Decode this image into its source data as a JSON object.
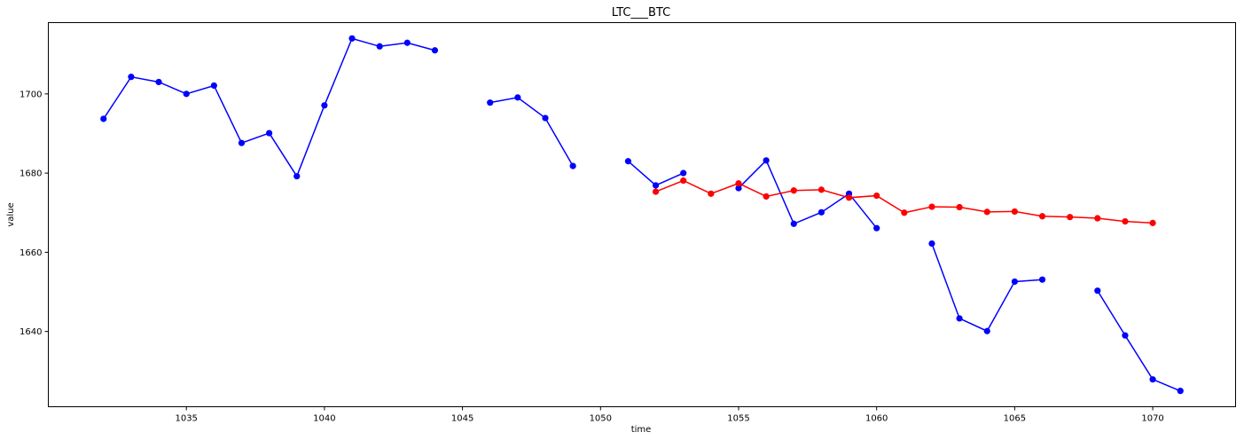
{
  "chart_data": {
    "type": "line",
    "title": "LTC___BTC",
    "xlabel": "time",
    "ylabel": "value",
    "xlim": [
      1030.0,
      1073.0
    ],
    "ylim": [
      1621.0,
      1718.0
    ],
    "xticks": [
      1035,
      1040,
      1045,
      1050,
      1055,
      1060,
      1065,
      1070
    ],
    "yticks": [
      1640,
      1660,
      1680,
      1700
    ],
    "grid": false,
    "series": [
      {
        "color": "#0000ff",
        "points": [
          [
            1032,
            1693.7
          ],
          [
            1033,
            1704.3
          ],
          [
            1034,
            1703.0
          ],
          [
            1035,
            1700.0
          ],
          [
            1036,
            1702.1
          ],
          [
            1037,
            1687.6
          ],
          [
            1038,
            1690.1
          ],
          [
            1039,
            1679.2
          ],
          [
            1040,
            1697.1
          ],
          [
            1041,
            1714.0
          ],
          [
            1042,
            1712.0
          ],
          [
            1043,
            1712.9
          ],
          [
            1044,
            1711.0
          ],
          [
            1045,
            null
          ],
          [
            1046,
            1697.8
          ],
          [
            1047,
            1699.1
          ],
          [
            1048,
            1693.9
          ],
          [
            1049,
            1681.8
          ],
          [
            1050,
            null
          ],
          [
            1051,
            1683.0
          ],
          [
            1052,
            1676.9
          ],
          [
            1053,
            1680.0
          ],
          [
            1054,
            null
          ],
          [
            1055,
            1676.2
          ],
          [
            1056,
            1683.2
          ],
          [
            1057,
            1667.2
          ],
          [
            1058,
            1670.1
          ],
          [
            1059,
            1674.8
          ],
          [
            1060,
            1666.1
          ],
          [
            1061,
            null
          ],
          [
            1062,
            1662.2
          ],
          [
            1063,
            1643.3
          ],
          [
            1064,
            1640.1
          ],
          [
            1065,
            1652.6
          ],
          [
            1066,
            1653.1
          ],
          [
            1067,
            null
          ],
          [
            1068,
            1650.3
          ],
          [
            1069,
            1639.0
          ],
          [
            1070,
            1627.9
          ],
          [
            1071,
            1625.0
          ]
        ]
      },
      {
        "color": "#ff0000",
        "points": [
          [
            1052,
            1675.3
          ],
          [
            1053,
            1678.1
          ],
          [
            1054,
            1674.8
          ],
          [
            1055,
            1677.4
          ],
          [
            1056,
            1674.1
          ],
          [
            1057,
            1675.6
          ],
          [
            1058,
            1675.8
          ],
          [
            1059,
            1673.8
          ],
          [
            1060,
            1674.3
          ],
          [
            1061,
            1670.0
          ],
          [
            1062,
            1671.5
          ],
          [
            1063,
            1671.4
          ],
          [
            1064,
            1670.2
          ],
          [
            1065,
            1670.3
          ],
          [
            1066,
            1669.1
          ],
          [
            1067,
            1668.9
          ],
          [
            1068,
            1668.6
          ],
          [
            1069,
            1667.8
          ],
          [
            1070,
            1667.4
          ]
        ]
      }
    ]
  }
}
